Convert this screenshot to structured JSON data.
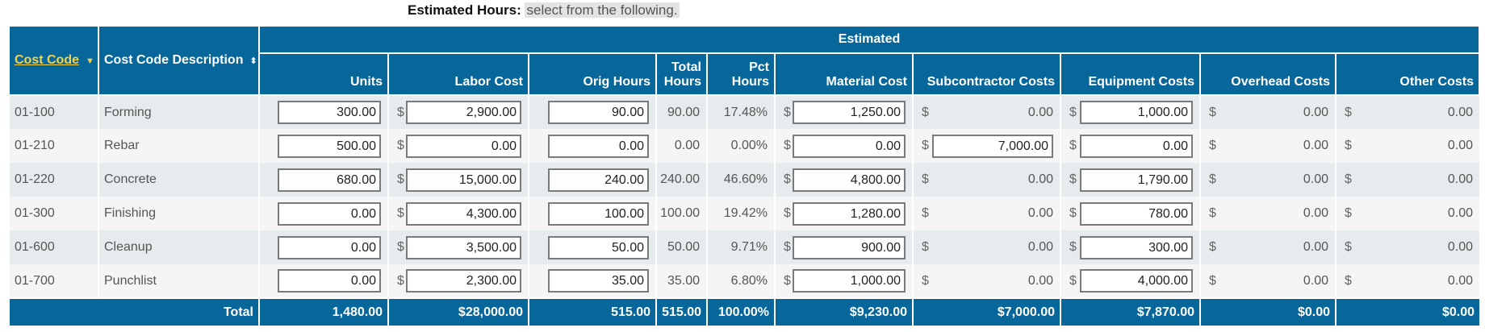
{
  "note": {
    "label": "Estimated Hours:",
    "selection": "select from the following."
  },
  "header": {
    "estimated_group": "Estimated",
    "cost_code": "Cost Code",
    "cost_code_caret": "▼",
    "description": "Cost Code Description",
    "description_caret": "⬍",
    "units": "Units",
    "labor_cost": "Labor Cost",
    "orig_hours": "Orig Hours",
    "total_hours": [
      "Total",
      "Hours"
    ],
    "pct_hours": [
      "Pct",
      "Hours"
    ],
    "material_cost": "Material Cost",
    "subcontractor_costs": "Subcontractor Costs",
    "equipment_costs": "Equipment Costs",
    "overhead_costs": "Overhead Costs",
    "other_costs": "Other Costs"
  },
  "currency_symbol": "$",
  "rows": [
    {
      "code": "01-100",
      "desc": "Forming",
      "units": "300.00",
      "labor": "2,900.00",
      "orig": "90.00",
      "total": "90.00",
      "pct": "17.48%",
      "material": "1,250.00",
      "sub": "0.00",
      "equip": "1,000.00",
      "overhead": "0.00",
      "other": "0.00"
    },
    {
      "code": "01-210",
      "desc": "Rebar",
      "units": "500.00",
      "labor": "0.00",
      "orig": "0.00",
      "total": "0.00",
      "pct": "0.00%",
      "material": "0.00",
      "sub": "7,000.00",
      "equip": "0.00",
      "overhead": "0.00",
      "other": "0.00"
    },
    {
      "code": "01-220",
      "desc": "Concrete",
      "units": "680.00",
      "labor": "15,000.00",
      "orig": "240.00",
      "total": "240.00",
      "pct": "46.60%",
      "material": "4,800.00",
      "sub": "0.00",
      "equip": "1,790.00",
      "overhead": "0.00",
      "other": "0.00"
    },
    {
      "code": "01-300",
      "desc": "Finishing",
      "units": "0.00",
      "labor": "4,300.00",
      "orig": "100.00",
      "total": "100.00",
      "pct": "19.42%",
      "material": "1,280.00",
      "sub": "0.00",
      "equip": "780.00",
      "overhead": "0.00",
      "other": "0.00"
    },
    {
      "code": "01-600",
      "desc": "Cleanup",
      "units": "0.00",
      "labor": "3,500.00",
      "orig": "50.00",
      "total": "50.00",
      "pct": "9.71%",
      "material": "900.00",
      "sub": "0.00",
      "equip": "300.00",
      "overhead": "0.00",
      "other": "0.00"
    },
    {
      "code": "01-700",
      "desc": "Punchlist",
      "units": "0.00",
      "labor": "2,300.00",
      "orig": "35.00",
      "total": "35.00",
      "pct": "6.80%",
      "material": "1,000.00",
      "sub": "0.00",
      "equip": "4,000.00",
      "overhead": "0.00",
      "other": "0.00"
    }
  ],
  "totals": {
    "label": "Total",
    "units": "1,480.00",
    "labor": "$28,000.00",
    "orig": "515.00",
    "total": "515.00",
    "pct": "100.00%",
    "material": "$9,230.00",
    "sub": "$7,000.00",
    "equip": "$7,870.00",
    "overhead": "$0.00",
    "other": "$0.00"
  },
  "colors": {
    "header_bg": "#07679a",
    "sort_link": "#f2d24b",
    "row_odd": "#e6eced",
    "row_even": "#f5f5f5"
  }
}
